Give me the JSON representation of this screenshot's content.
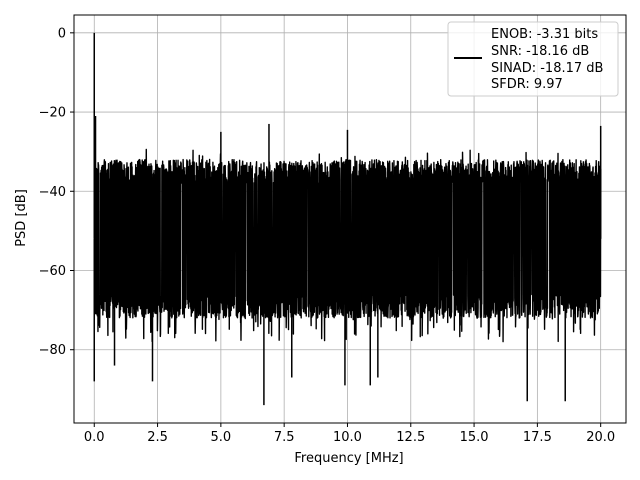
{
  "chart_data": {
    "type": "line",
    "xlabel": "Frequency [MHz]",
    "ylabel": "PSD [dB]",
    "xlim": [
      -0.8,
      21.0
    ],
    "ylim": [
      -98.5,
      4.5
    ],
    "xticks": [
      0.0,
      2.5,
      5.0,
      7.5,
      10.0,
      12.5,
      15.0,
      17.5,
      20.0
    ],
    "xtick_labels": [
      "0.0",
      "2.5",
      "5.0",
      "7.5",
      "10.0",
      "12.5",
      "15.0",
      "17.5",
      "20.0"
    ],
    "yticks": [
      0,
      -20,
      -40,
      -60,
      -80
    ],
    "ytick_labels": [
      "0",
      "−20",
      "−40",
      "−60",
      "−80"
    ],
    "grid": true,
    "legend_position": "top-right",
    "legend_lines": [
      "ENOB: -3.31 bits",
      "SNR: -18.16 dB",
      "SINAD: -18.17 dB",
      "SFDR: 9.97"
    ],
    "series": [
      {
        "color": "#000000",
        "description_of_shape": "dense noise floor",
        "x_range": [
          0.0,
          20.0
        ],
        "noise_upper_envelope": -32,
        "noise_lower_typical": -72,
        "peaks": [
          {
            "x": 0.0,
            "y": 0
          },
          {
            "x": 0.05,
            "y": -21
          },
          {
            "x": 5.0,
            "y": -25
          },
          {
            "x": 6.9,
            "y": -23
          },
          {
            "x": 10.0,
            "y": -24.5
          },
          {
            "x": 20.0,
            "y": -23.5
          }
        ],
        "dips": [
          {
            "x": 0.0,
            "y": -88
          },
          {
            "x": 0.8,
            "y": -84
          },
          {
            "x": 2.3,
            "y": -88
          },
          {
            "x": 6.7,
            "y": -94
          },
          {
            "x": 7.8,
            "y": -87
          },
          {
            "x": 9.9,
            "y": -89
          },
          {
            "x": 10.9,
            "y": -89
          },
          {
            "x": 11.2,
            "y": -87
          },
          {
            "x": 17.1,
            "y": -93
          },
          {
            "x": 18.6,
            "y": -93
          }
        ]
      }
    ]
  }
}
